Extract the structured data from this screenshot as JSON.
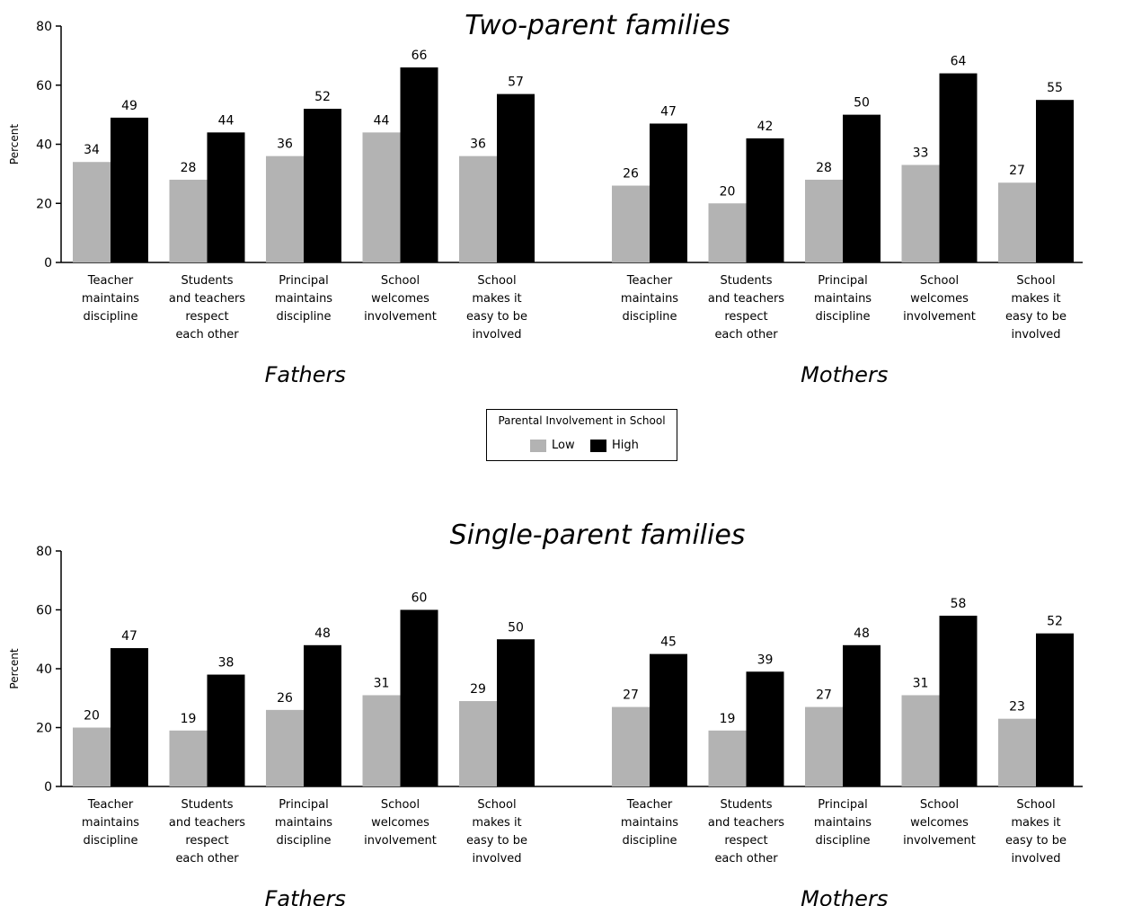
{
  "chart_data": [
    {
      "type": "bar",
      "title": "Two-parent families",
      "ylabel": "Percent",
      "ylim": [
        0,
        80
      ],
      "yticks": [
        0,
        20,
        40,
        60,
        80
      ],
      "legend": {
        "title": "Parental Involvement in School",
        "placement": "center"
      },
      "colors": {
        "Low": "#b3b3b3",
        "High": "#000000"
      },
      "groups": [
        {
          "label": "Fathers",
          "categories": [
            [
              "Teacher",
              "maintains",
              "discipline"
            ],
            [
              "Students",
              "and teachers",
              "respect",
              "each other"
            ],
            [
              "Principal",
              "maintains",
              "discipline"
            ],
            [
              "School",
              "welcomes",
              "involvement"
            ],
            [
              "School",
              "makes it",
              "easy to be",
              "involved"
            ]
          ],
          "series": [
            {
              "name": "Low",
              "values": [
                34,
                28,
                36,
                44,
                36
              ]
            },
            {
              "name": "High",
              "values": [
                49,
                44,
                52,
                66,
                57
              ]
            }
          ]
        },
        {
          "label": "Mothers",
          "categories": [
            [
              "Teacher",
              "maintains",
              "discipline"
            ],
            [
              "Students",
              "and teachers",
              "respect",
              "each other"
            ],
            [
              "Principal",
              "maintains",
              "discipline"
            ],
            [
              "School",
              "welcomes",
              "involvement"
            ],
            [
              "School",
              "makes it",
              "easy to be",
              "involved"
            ]
          ],
          "series": [
            {
              "name": "Low",
              "values": [
                26,
                20,
                28,
                33,
                27
              ]
            },
            {
              "name": "High",
              "values": [
                47,
                42,
                50,
                64,
                55
              ]
            }
          ]
        }
      ]
    },
    {
      "type": "bar",
      "title": "Single-parent families",
      "ylabel": "Percent",
      "ylim": [
        0,
        80
      ],
      "yticks": [
        0,
        20,
        40,
        60,
        80
      ],
      "colors": {
        "Low": "#b3b3b3",
        "High": "#000000"
      },
      "groups": [
        {
          "label": "Fathers",
          "categories": [
            [
              "Teacher",
              "maintains",
              "discipline"
            ],
            [
              "Students",
              "and teachers",
              "respect",
              "each other"
            ],
            [
              "Principal",
              "maintains",
              "discipline"
            ],
            [
              "School",
              "welcomes",
              "involvement"
            ],
            [
              "School",
              "makes it",
              "easy to be",
              "involved"
            ]
          ],
          "series": [
            {
              "name": "Low",
              "values": [
                20,
                19,
                26,
                31,
                29
              ]
            },
            {
              "name": "High",
              "values": [
                47,
                38,
                48,
                60,
                50
              ]
            }
          ]
        },
        {
          "label": "Mothers",
          "categories": [
            [
              "Teacher",
              "maintains",
              "discipline"
            ],
            [
              "Students",
              "and teachers",
              "respect",
              "each other"
            ],
            [
              "Principal",
              "maintains",
              "discipline"
            ],
            [
              "School",
              "welcomes",
              "involvement"
            ],
            [
              "School",
              "makes it",
              "easy to be",
              "involved"
            ]
          ],
          "series": [
            {
              "name": "Low",
              "values": [
                27,
                19,
                27,
                31,
                23
              ]
            },
            {
              "name": "High",
              "values": [
                45,
                39,
                48,
                58,
                52
              ]
            }
          ]
        }
      ]
    }
  ],
  "legend": {
    "title": "Parental Involvement in School",
    "items": [
      "Low",
      "High"
    ],
    "colors": [
      "#b3b3b3",
      "#000000"
    ]
  }
}
